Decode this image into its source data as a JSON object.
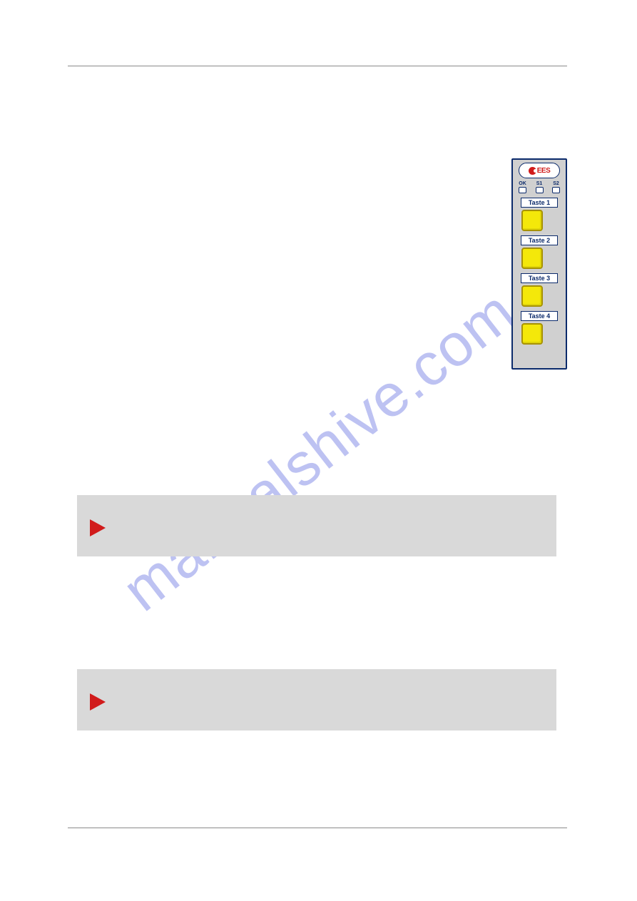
{
  "watermark": {
    "text": "manualshive.com"
  },
  "device_panel": {
    "logo_text": "EES",
    "leds": [
      {
        "label": "OK"
      },
      {
        "label": "S1"
      },
      {
        "label": "S2"
      }
    ],
    "buttons": [
      {
        "label": "Taste 1"
      },
      {
        "label": "Taste 2"
      },
      {
        "label": "Taste 3"
      },
      {
        "label": "Taste 4"
      }
    ],
    "colors": {
      "panel_bg": "#d0d0d0",
      "panel_border": "#0b2a6b",
      "button_fill": "#f4e80a",
      "button_border": "#a79200",
      "logo_text": "#d11b1b",
      "label_text": "#0b2a6b"
    }
  },
  "note_boxes": {
    "bg": "#d9d9d9",
    "arrow_color": "#d11b1b"
  },
  "rules": {
    "color": "#8a8a8a"
  }
}
